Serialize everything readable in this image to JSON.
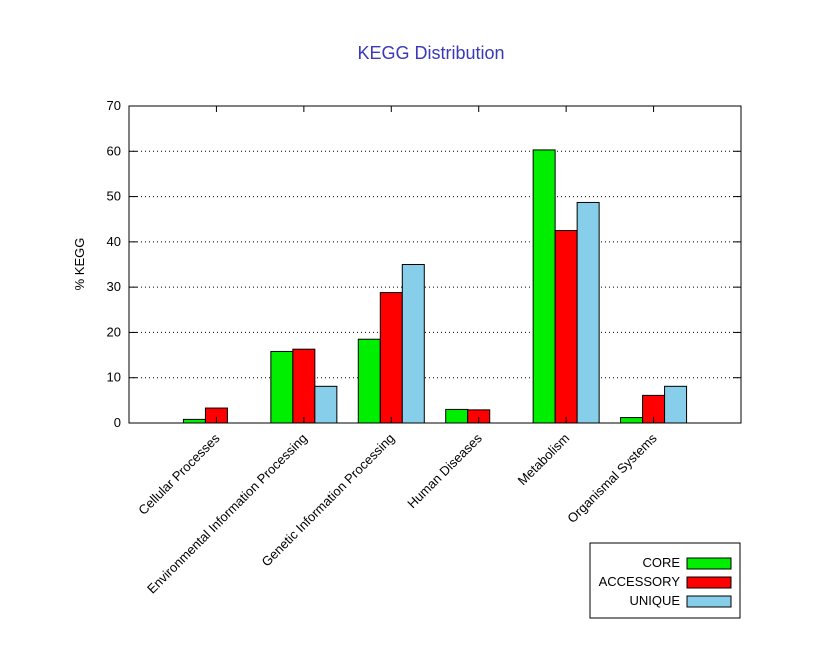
{
  "chart_data": {
    "type": "bar",
    "title": "KEGG Distribution",
    "xlabel": "",
    "ylabel": "% KEGG",
    "ylim": [
      0,
      70
    ],
    "yticks": [
      0,
      10,
      20,
      30,
      40,
      50,
      60,
      70
    ],
    "grid": "horizontal-dotted",
    "legend_position": "bottom-right",
    "categories": [
      "Cellular Processes",
      "Environmental Information Processing",
      "Genetic Information Processing",
      "Human Diseases",
      "Metabolism",
      "Organismal Systems"
    ],
    "series": [
      {
        "name": "CORE",
        "color": "#00ee00",
        "values": [
          0.8,
          15.8,
          18.5,
          3.0,
          60.3,
          1.2
        ]
      },
      {
        "name": "ACCESSORY",
        "color": "#ff0000",
        "values": [
          3.3,
          16.3,
          28.8,
          2.9,
          42.5,
          6.1
        ]
      },
      {
        "name": "UNIQUE",
        "color": "#87ceeb",
        "values": [
          0,
          8.1,
          35.0,
          0,
          48.7,
          8.1
        ]
      }
    ],
    "title_color": "#3a3ab8"
  }
}
